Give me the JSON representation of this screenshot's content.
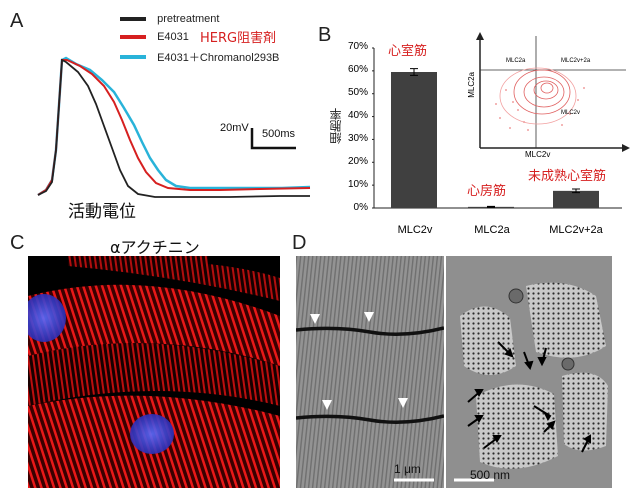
{
  "panels": {
    "a": {
      "letter": "A",
      "legend": [
        {
          "label": "pretreatment",
          "color": "#222222"
        },
        {
          "label": "E4031",
          "note": "HERG阻害剤",
          "color": "#d62020"
        },
        {
          "label": "E4031＋Chromanol293B",
          "color": "#29b3d9"
        }
      ],
      "scale_mv": "20mV",
      "scale_ms": "500ms",
      "caption": "活動電位",
      "note_color": "#d62020"
    },
    "b": {
      "letter": "B",
      "ylabel": "細胞率",
      "yticks": [
        "0%",
        "10%",
        "20%",
        "30%",
        "40%",
        "50%",
        "60%",
        "70%"
      ],
      "annotations": [
        "心室筋",
        "心房筋",
        "未成熟心室筋"
      ],
      "annotation_color": "#d62020",
      "inset": {
        "xlabel": "MLC2v",
        "ylabel": "MLC2a",
        "quadrant_labels": [
          "MLC2a",
          "MLC2v+2a",
          "MLC2v"
        ]
      }
    },
    "c": {
      "letter": "C",
      "title": "αアクチニン"
    },
    "d": {
      "letter": "D",
      "scale_left": "1 μm",
      "scale_right": "500 nm"
    }
  },
  "chart_data": {
    "type": "bar",
    "title": "",
    "xlabel": "",
    "ylabel": "細胞率",
    "categories": [
      "MLC2v",
      "MLC2a",
      "MLC2v+2a"
    ],
    "values": [
      59.5,
      0.5,
      7.5
    ],
    "errors": [
      1.5,
      0.2,
      0.8
    ],
    "ylim": [
      0,
      70
    ],
    "bar_color": "#404040",
    "grid": false
  }
}
